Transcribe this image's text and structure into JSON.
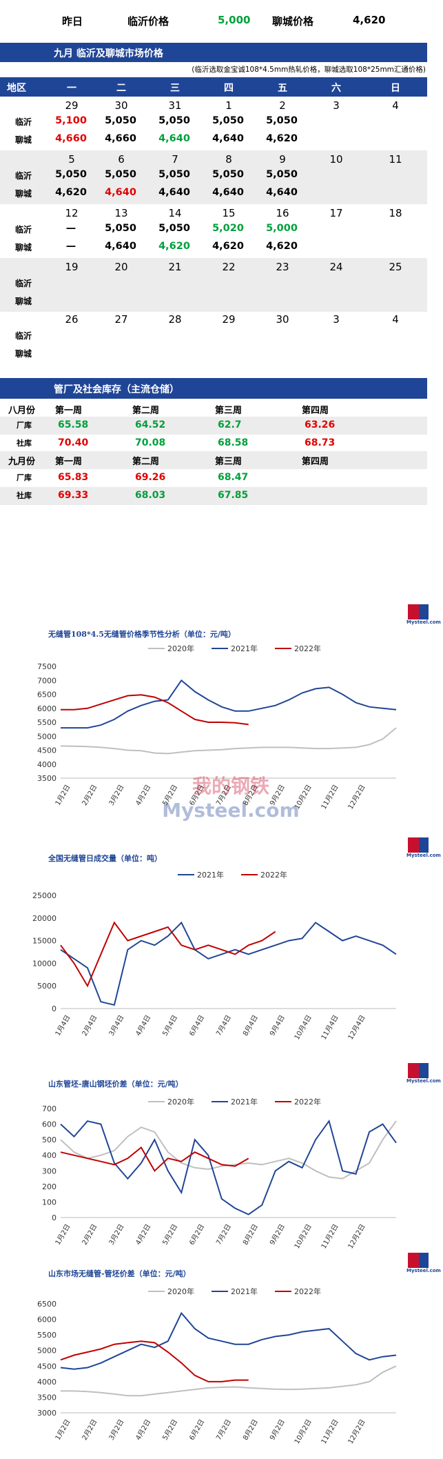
{
  "top": {
    "yesterday": "昨日",
    "linyi_label": "临沂价格",
    "linyi_value": "5,000",
    "liaocheng_label": "聊城价格",
    "liaocheng_value": "4,620"
  },
  "section1": {
    "title": "九月  临沂及聊城市场价格",
    "note": "(临沂选取金宝诚108*4.5mm热轧价格，聊城选取108*25mm汇通价格)"
  },
  "calendar": {
    "headers": [
      "地区",
      "一",
      "二",
      "三",
      "四",
      "五",
      "六",
      "日"
    ],
    "row_labels": [
      "临沂",
      "聊城"
    ],
    "weeks": [
      {
        "days": [
          "29",
          "30",
          "31",
          "1",
          "2",
          "3",
          "4"
        ],
        "linyi": [
          "5,100",
          "5,050",
          "5,050",
          "5,050",
          "5,050"
        ],
        "liaocheng": [
          "4,660",
          "4,660",
          "4,640",
          "4,640",
          "4,620"
        ],
        "linyi_colors": [
          "#e00000",
          "#000",
          "#000",
          "#000",
          "#000"
        ],
        "liaocheng_colors": [
          "#e00000",
          "#000",
          "#00a03c",
          "#000",
          "#000"
        ]
      },
      {
        "days": [
          "5",
          "6",
          "7",
          "8",
          "9",
          "10",
          "11"
        ],
        "linyi": [
          "5,050",
          "5,050",
          "5,050",
          "5,050",
          "5,050"
        ],
        "liaocheng": [
          "4,620",
          "4,640",
          "4,640",
          "4,640",
          "4,640"
        ],
        "linyi_colors": [
          "#000",
          "#000",
          "#000",
          "#000",
          "#000"
        ],
        "liaocheng_colors": [
          "#000",
          "#e00000",
          "#000",
          "#000",
          "#000"
        ]
      },
      {
        "days": [
          "12",
          "13",
          "14",
          "15",
          "16",
          "17",
          "18"
        ],
        "linyi": [
          "—",
          "5,050",
          "5,050",
          "5,020",
          "5,000"
        ],
        "liaocheng": [
          "—",
          "4,640",
          "4,620",
          "4,620",
          "4,620"
        ],
        "linyi_colors": [
          "#000",
          "#000",
          "#000",
          "#00a03c",
          "#00a03c"
        ],
        "liaocheng_colors": [
          "#000",
          "#000",
          "#00a03c",
          "#000",
          "#000"
        ]
      },
      {
        "days": [
          "19",
          "20",
          "21",
          "22",
          "23",
          "24",
          "25"
        ],
        "linyi": [],
        "liaocheng": []
      },
      {
        "days": [
          "26",
          "27",
          "28",
          "29",
          "30",
          "3",
          "4"
        ],
        "linyi": [],
        "liaocheng": []
      }
    ]
  },
  "inventory": {
    "title": "管厂及社会库存（主流仓储）",
    "aug_label": "八月份",
    "sep_label": "九月份",
    "week_labels": [
      "第一周",
      "第二周",
      "第三周",
      "第四周"
    ],
    "factory_label": "厂库",
    "social_label": "社库",
    "aug_factory": [
      "65.58",
      "64.52",
      "62.7",
      "63.26"
    ],
    "aug_factory_colors": [
      "#00a03c",
      "#00a03c",
      "#00a03c",
      "#e00000"
    ],
    "aug_social": [
      "70.40",
      "70.08",
      "68.58",
      "68.73"
    ],
    "aug_social_colors": [
      "#e00000",
      "#00a03c",
      "#00a03c",
      "#e00000"
    ],
    "sep_factory": [
      "65.83",
      "69.26",
      "68.47"
    ],
    "sep_factory_colors": [
      "#e00000",
      "#e00000",
      "#00a03c"
    ],
    "sep_social": [
      "69.33",
      "68.03",
      "67.85"
    ],
    "sep_social_colors": [
      "#e00000",
      "#00a03c",
      "#00a03c"
    ]
  },
  "watermark": {
    "cn": "我的钢铁",
    "en": "Mysteel.com"
  },
  "logo_text": "Mysteel.com",
  "chart_data": [
    {
      "type": "line",
      "title": "无缝管108*4.5无缝管价格季节性分析（单位：元/吨）",
      "legend": [
        "2020年",
        "2021年",
        "2022年"
      ],
      "colors": [
        "#bfbfbf",
        "#1f4596",
        "#c00000"
      ],
      "ylim": [
        3500,
        7500
      ],
      "yticks": [
        "7500",
        "7000",
        "6500",
        "6000",
        "5500",
        "5000",
        "4500",
        "4000",
        "3500"
      ],
      "xticks": [
        "1月2日",
        "2月2日",
        "3月2日",
        "4月2日",
        "5月2日",
        "6月2日",
        "7月2日",
        "8月2日",
        "9月2日",
        "10月2日",
        "11月2日",
        "12月2日"
      ],
      "series": [
        {
          "name": "2020年",
          "values": [
            4650,
            4640,
            4630,
            4600,
            4560,
            4500,
            4480,
            4400,
            4380,
            4430,
            4480,
            4500,
            4520,
            4560,
            4580,
            4600,
            4600,
            4600,
            4580,
            4560,
            4560,
            4580,
            4600,
            4700,
            4900,
            5300
          ]
        },
        {
          "name": "2021年",
          "values": [
            5300,
            5300,
            5300,
            5400,
            5600,
            5900,
            6100,
            6250,
            6300,
            7000,
            6600,
            6300,
            6050,
            5900,
            5900,
            6000,
            6100,
            6300,
            6550,
            6700,
            6750,
            6500,
            6200,
            6050,
            6000,
            5950
          ]
        },
        {
          "name": "2022年",
          "values": [
            5950,
            5950,
            6000,
            6150,
            6300,
            6450,
            6480,
            6400,
            6200,
            5900,
            5600,
            5500,
            5500,
            5480,
            5420,
            null,
            null,
            null,
            null,
            null,
            null,
            null,
            null,
            null,
            null,
            null
          ]
        }
      ]
    },
    {
      "type": "line",
      "title": "全国无缝管日成交量（单位：吨）",
      "legend": [
        "2021年",
        "2022年"
      ],
      "colors": [
        "#1f4596",
        "#c00000"
      ],
      "ylim": [
        0,
        25000
      ],
      "yticks": [
        "25000",
        "20000",
        "15000",
        "10000",
        "5000",
        "0"
      ],
      "xticks": [
        "1月4日",
        "2月4日",
        "3月4日",
        "4月4日",
        "5月4日",
        "6月4日",
        "7月4日",
        "8月4日",
        "9月4日",
        "10月4日",
        "11月4日",
        "12月4日"
      ],
      "series": [
        {
          "name": "2021年",
          "values": [
            13000,
            11000,
            9000,
            1500,
            800,
            13000,
            15000,
            14000,
            16000,
            19000,
            13000,
            11000,
            12000,
            13000,
            12000,
            13000,
            14000,
            15000,
            15500,
            19000,
            17000,
            15000,
            16000,
            15000,
            14000,
            12000
          ]
        },
        {
          "name": "2022年",
          "values": [
            14000,
            10000,
            5000,
            12000,
            19000,
            15000,
            16000,
            17000,
            18000,
            14000,
            13000,
            14000,
            13000,
            12000,
            14000,
            15000,
            17000,
            null,
            null,
            null,
            null,
            null,
            null,
            null,
            null,
            null
          ]
        }
      ]
    },
    {
      "type": "line",
      "title": "山东管坯-唐山钢坯价差（单位：元/吨）",
      "legend": [
        "2020年",
        "2021年",
        "2022年"
      ],
      "colors": [
        "#bfbfbf",
        "#1f4596",
        "#c00000"
      ],
      "ylim": [
        0,
        700
      ],
      "yticks": [
        "700",
        "600",
        "500",
        "400",
        "300",
        "200",
        "100",
        "0"
      ],
      "xticks": [
        "1月2日",
        "2月2日",
        "3月2日",
        "4月2日",
        "5月2日",
        "6月2日",
        "7月2日",
        "8月2日",
        "9月2日",
        "10月2日",
        "11月2日",
        "12月2日"
      ],
      "series": [
        {
          "name": "2020年",
          "values": [
            500,
            420,
            380,
            400,
            430,
            520,
            580,
            550,
            420,
            350,
            320,
            310,
            330,
            340,
            350,
            340,
            360,
            380,
            350,
            300,
            260,
            250,
            300,
            350,
            500,
            620
          ]
        },
        {
          "name": "2021年",
          "values": [
            600,
            520,
            620,
            600,
            350,
            250,
            350,
            500,
            300,
            160,
            500,
            400,
            120,
            60,
            20,
            80,
            300,
            360,
            320,
            500,
            620,
            300,
            280,
            550,
            600,
            480
          ]
        },
        {
          "name": "2022年",
          "values": [
            420,
            400,
            380,
            360,
            340,
            380,
            450,
            300,
            380,
            360,
            420,
            380,
            340,
            330,
            380,
            null,
            null,
            null,
            null,
            null,
            null,
            null,
            null,
            null,
            null,
            null
          ]
        }
      ]
    },
    {
      "type": "line",
      "title": "山东市场无缝管-管坯价差（单位：元/吨）",
      "legend": [
        "2020年",
        "2021年",
        "2022年"
      ],
      "colors": [
        "#bfbfbf",
        "#1f4596",
        "#c00000"
      ],
      "ylim": [
        3000,
        6500
      ],
      "yticks": [
        "6500",
        "6000",
        "5500",
        "5000",
        "4500",
        "4000",
        "3500",
        "3000"
      ],
      "xticks": [
        "1月2日",
        "2月2日",
        "3月2日",
        "4月2日",
        "5月2日",
        "6月2日",
        "7月2日",
        "8月2日",
        "9月2日",
        "10月2日",
        "11月2日",
        "12月2日"
      ],
      "series": [
        {
          "name": "2020年",
          "values": [
            3700,
            3700,
            3680,
            3650,
            3600,
            3550,
            3550,
            3600,
            3650,
            3700,
            3750,
            3800,
            3820,
            3830,
            3800,
            3780,
            3760,
            3750,
            3760,
            3780,
            3800,
            3850,
            3900,
            4000,
            4300,
            4500
          ]
        },
        {
          "name": "2021年",
          "values": [
            4450,
            4400,
            4450,
            4600,
            4800,
            5000,
            5200,
            5100,
            5300,
            6200,
            5700,
            5400,
            5300,
            5200,
            5200,
            5350,
            5450,
            5500,
            5600,
            5650,
            5700,
            5300,
            4900,
            4700,
            4800,
            4850
          ]
        },
        {
          "name": "2022年",
          "values": [
            4700,
            4850,
            4950,
            5050,
            5200,
            5250,
            5300,
            5250,
            4950,
            4600,
            4200,
            4000,
            4000,
            4050,
            4050,
            null,
            null,
            null,
            null,
            null,
            null,
            null,
            null,
            null,
            null,
            null
          ]
        }
      ]
    }
  ]
}
